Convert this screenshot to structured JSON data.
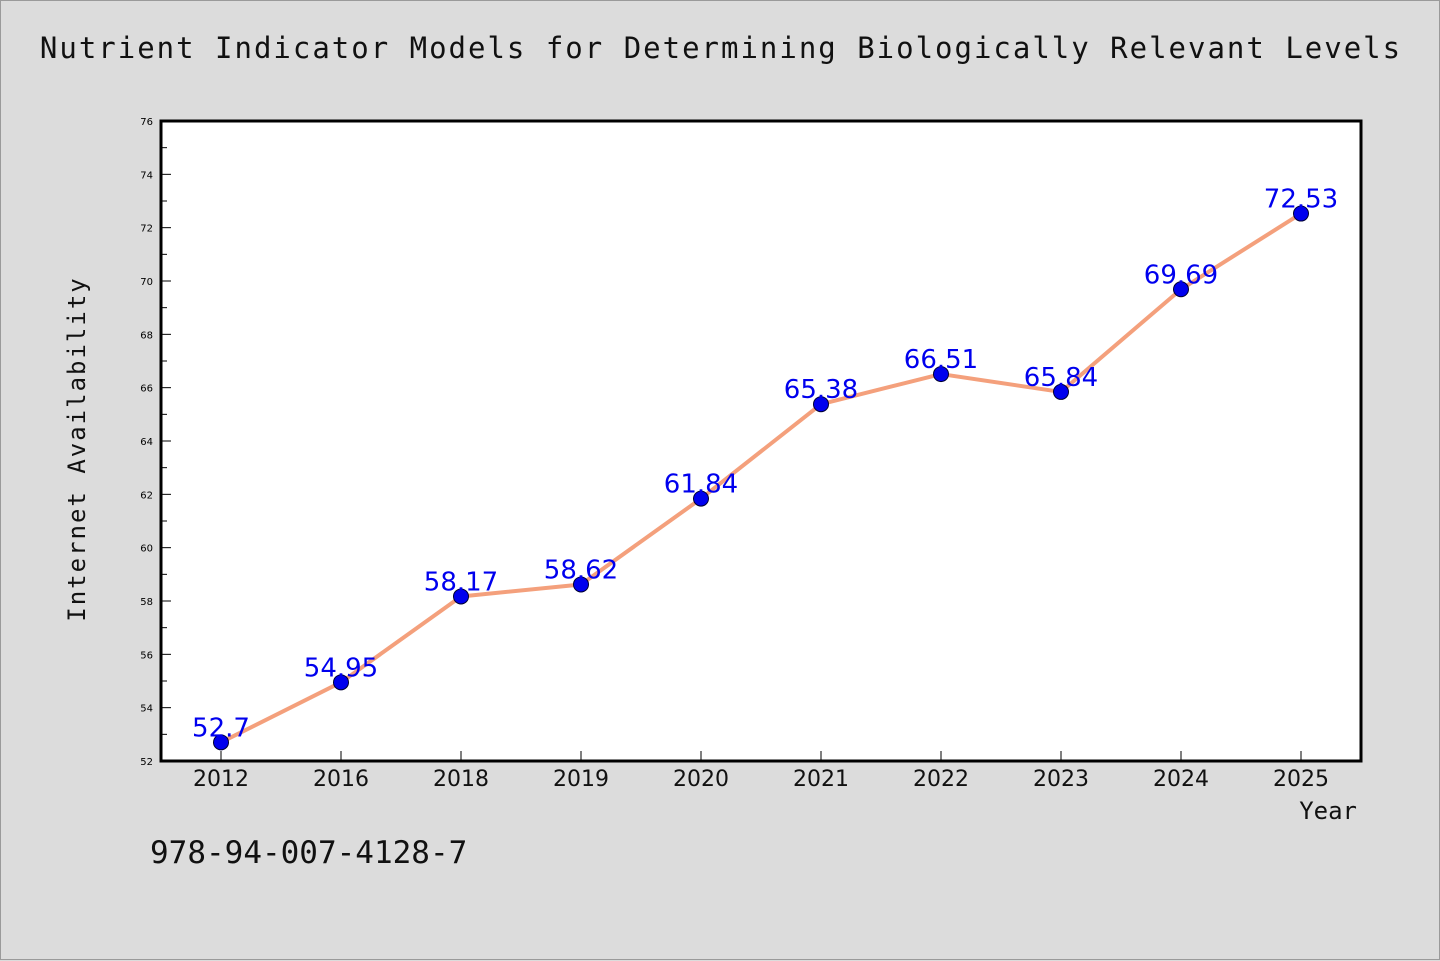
{
  "title": "Nutrient Indicator Models for Determining Biologically Relevant Levels",
  "footnote": "978-94-007-4128-7",
  "colors": {
    "background": "#dcdcdc",
    "plot_area": "#ffffff",
    "line": "#f4a07c",
    "marker": "#0000ee",
    "label": "#0000ee"
  },
  "chart_data": {
    "type": "line",
    "xlabel": "Year",
    "ylabel": "Internet Availability",
    "categories": [
      "2012",
      "2016",
      "2018",
      "2019",
      "2020",
      "2021",
      "2022",
      "2023",
      "2024",
      "2025"
    ],
    "series": [
      {
        "values": [
          52.7,
          54.95,
          58.17,
          58.62,
          61.84,
          65.38,
          66.51,
          65.84,
          69.69,
          72.53
        ],
        "labels": [
          "52.7",
          "54.95",
          "58.17",
          "58.62",
          "61.84",
          "65.38",
          "66.51",
          "65.84",
          "69.69",
          "72.53"
        ]
      }
    ],
    "ylim": [
      52,
      76
    ],
    "yticks": [
      52,
      54,
      56,
      58,
      60,
      62,
      64,
      66,
      68,
      70,
      72,
      74,
      76
    ],
    "grid": false,
    "legend": "none"
  }
}
